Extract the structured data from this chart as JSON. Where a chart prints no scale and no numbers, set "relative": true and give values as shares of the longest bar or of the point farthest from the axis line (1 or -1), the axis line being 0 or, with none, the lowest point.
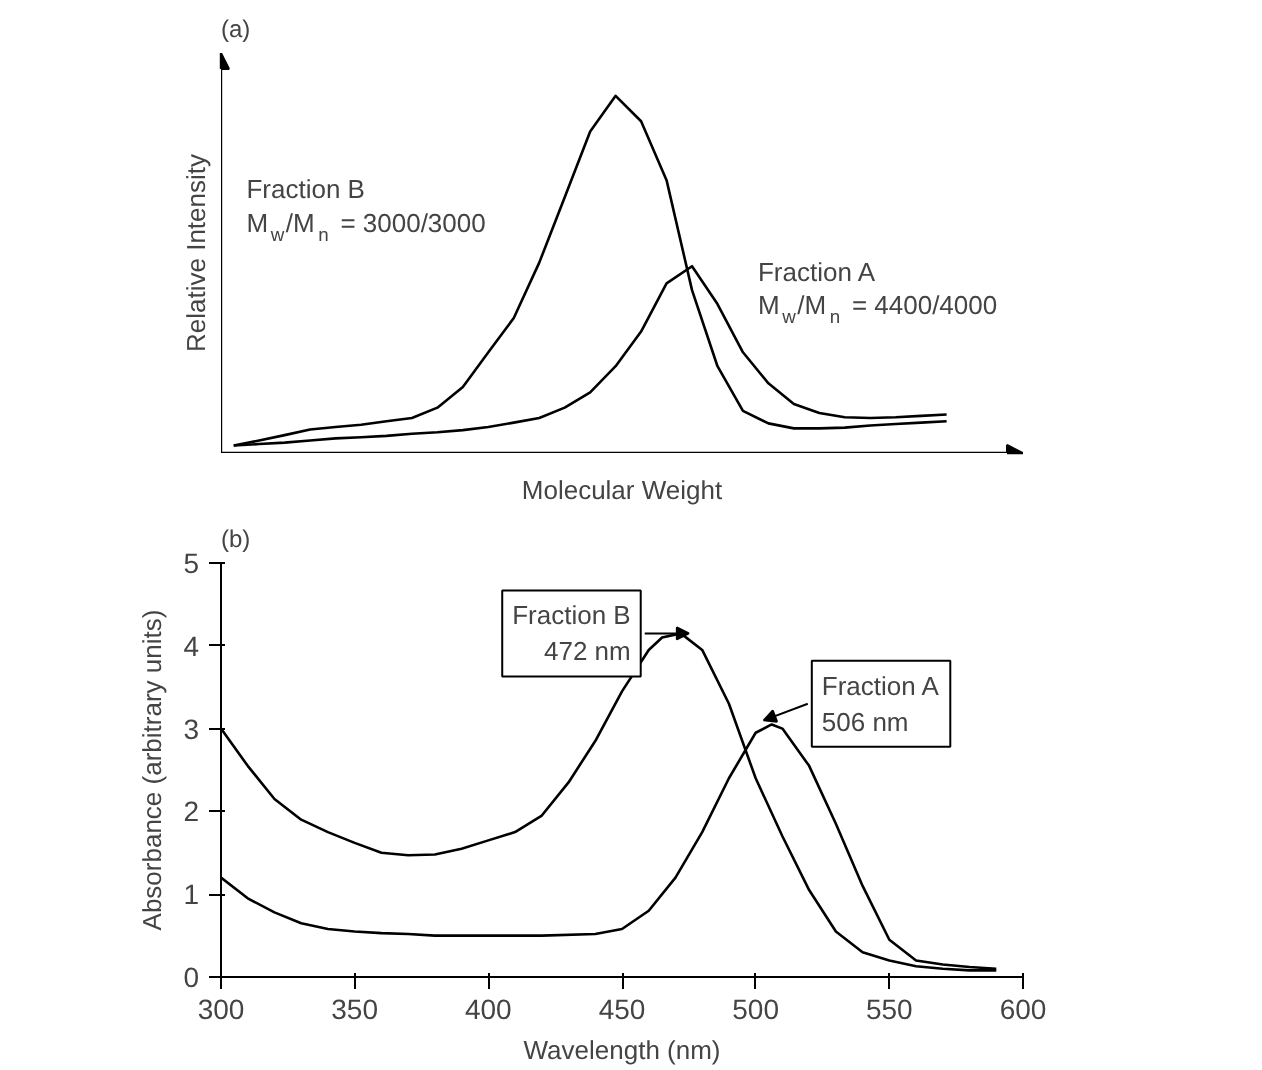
{
  "chart_data": [
    {
      "type": "line",
      "title": "(a)",
      "xlabel": "Molecular Weight",
      "ylabel": "Relative Intensity",
      "relative": true,
      "tick_labels": false,
      "categories": [
        null,
        null,
        null,
        null,
        null,
        null,
        null,
        null,
        null,
        null,
        null,
        null,
        null,
        null,
        null,
        null,
        null,
        null,
        null,
        null,
        null,
        null,
        null,
        null,
        null,
        null,
        null,
        null,
        null
      ],
      "series": [
        {
          "color": "#000000",
          "values": [
            0.021,
            0.035,
            0.05,
            0.066,
            0.073,
            0.079,
            0.089,
            0.098,
            0.127,
            0.185,
            0.282,
            0.378,
            0.533,
            0.716,
            0.9,
            1.0,
            0.929,
            0.764,
            0.456,
            0.243,
            0.118,
            0.083,
            0.069,
            0.069,
            0.071,
            0.077,
            0.081,
            0.085,
            0.089
          ]
        },
        {
          "color": "#000000",
          "values": [
            0.021,
            0.025,
            0.029,
            0.035,
            0.041,
            0.044,
            0.048,
            0.054,
            0.058,
            0.064,
            0.073,
            0.085,
            0.098,
            0.127,
            0.17,
            0.243,
            0.34,
            0.475,
            0.523,
            0.417,
            0.282,
            0.195,
            0.137,
            0.112,
            0.1,
            0.098,
            0.1,
            0.104,
            0.108
          ]
        }
      ],
      "annotations": [
        "Fraction B\nM$_{w}$/M$_{n}$ = 3000/3000",
        "Fraction A\nM$_{w}$/M$_{n}$ = 4400/4000"
      ]
    },
    {
      "type": "line",
      "title": "(b)",
      "xlabel": "Wavelength (nm)",
      "ylabel": "Absorbance (arbitrary units)",
      "xlim": [
        300,
        600
      ],
      "xticks": [
        300,
        350,
        400,
        450,
        500,
        550,
        600
      ],
      "ylim": [
        0,
        5
      ],
      "yticks": [
        0,
        1,
        2,
        3,
        4,
        5
      ],
      "series": [
        {
          "color": "#000000",
          "x": [
            300,
            310,
            320,
            330,
            340,
            350,
            360,
            370,
            380,
            390,
            400,
            410,
            420,
            430,
            440,
            450,
            460,
            465,
            472,
            480,
            490,
            500,
            510,
            520,
            530,
            540,
            550,
            560,
            570,
            580,
            590
          ],
          "values": [
            3.0,
            2.55,
            2.15,
            1.9,
            1.75,
            1.62,
            1.5,
            1.47,
            1.48,
            1.55,
            1.65,
            1.75,
            1.95,
            2.35,
            2.85,
            3.45,
            3.95,
            4.1,
            4.15,
            3.95,
            3.3,
            2.4,
            1.7,
            1.05,
            0.55,
            0.3,
            0.2,
            0.13,
            0.1,
            0.08,
            0.08
          ]
        },
        {
          "color": "#000000",
          "x": [
            300,
            310,
            320,
            330,
            340,
            350,
            360,
            370,
            380,
            390,
            400,
            420,
            440,
            450,
            460,
            470,
            480,
            490,
            500,
            506,
            510,
            520,
            530,
            540,
            550,
            560,
            570,
            580,
            590
          ],
          "values": [
            1.2,
            0.95,
            0.78,
            0.65,
            0.58,
            0.55,
            0.53,
            0.52,
            0.5,
            0.5,
            0.5,
            0.5,
            0.52,
            0.58,
            0.8,
            1.2,
            1.75,
            2.4,
            2.95,
            3.05,
            3.0,
            2.55,
            1.85,
            1.1,
            0.45,
            0.2,
            0.15,
            0.12,
            0.1
          ]
        }
      ],
      "annotations": [
        {
          "text": "Fraction B\n472 nm",
          "x": 472,
          "y": 4.15
        },
        {
          "text": "Fraction A\n506 nm",
          "x": 506,
          "y": 3.05
        }
      ]
    }
  ]
}
